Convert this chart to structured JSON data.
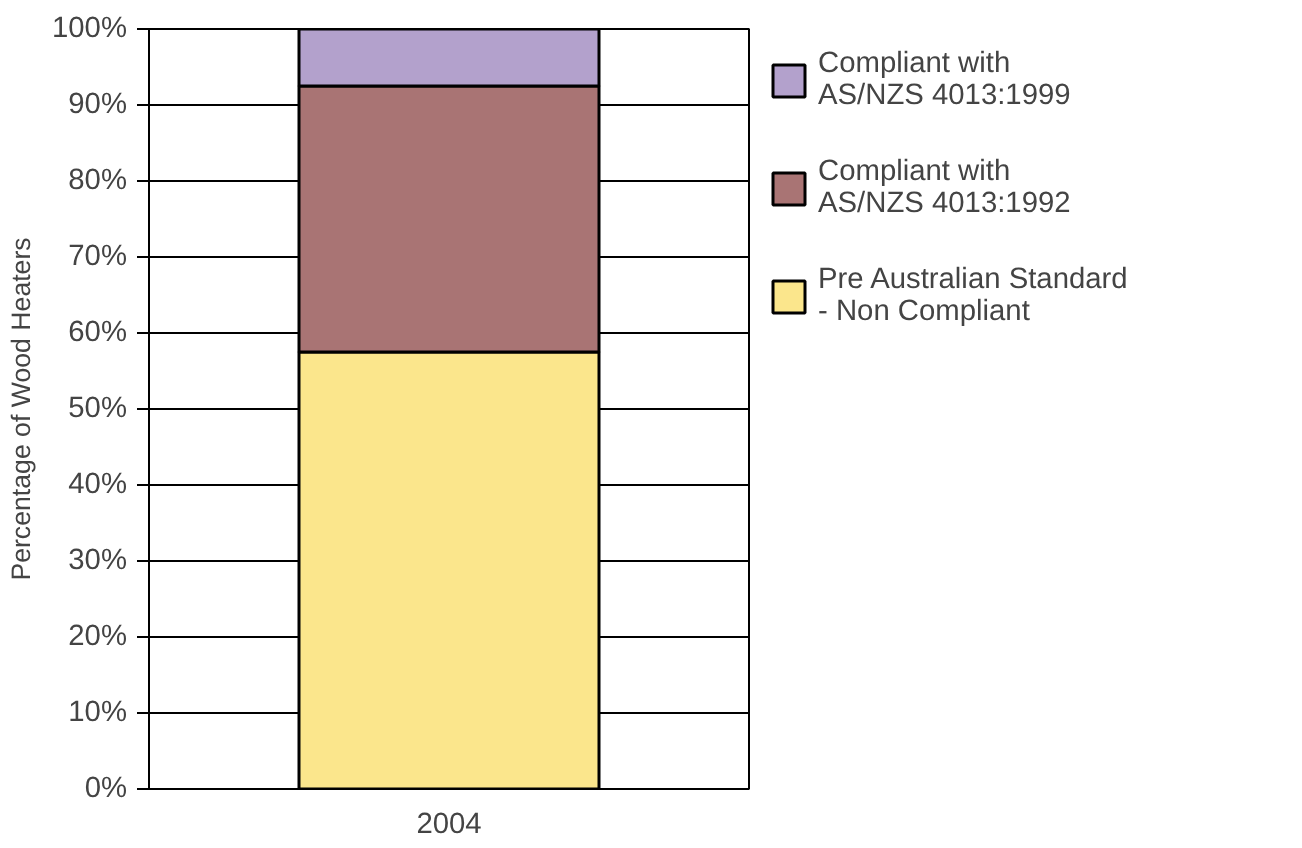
{
  "chart_data": {
    "type": "bar",
    "stacked": true,
    "ylabel": "Percentage of Wood Heaters",
    "categories": [
      "2004"
    ],
    "series": [
      {
        "name": "Pre Australian Standard\n- Non Compliant",
        "color": "#fbe68c",
        "values": [
          57.5
        ]
      },
      {
        "name": "Compliant with\nAS/NZS 4013:1992",
        "color": "#a97474",
        "values": [
          35
        ]
      },
      {
        "name": "Compliant with\nAS/NZS 4013:1999",
        "color": "#b3a1cc",
        "values": [
          7.5
        ]
      }
    ],
    "ylim": [
      0,
      100
    ],
    "yticks": [
      {
        "value": 0,
        "label": "0%"
      },
      {
        "value": 10,
        "label": "10%"
      },
      {
        "value": 20,
        "label": "20%"
      },
      {
        "value": 30,
        "label": "30%"
      },
      {
        "value": 40,
        "label": "40%"
      },
      {
        "value": 50,
        "label": "50%"
      },
      {
        "value": 60,
        "label": "60%"
      },
      {
        "value": 70,
        "label": "70%"
      },
      {
        "value": 80,
        "label": "80%"
      },
      {
        "value": 90,
        "label": "90%"
      },
      {
        "value": 100,
        "label": "100%"
      }
    ],
    "grid": "y",
    "legend": "right"
  }
}
